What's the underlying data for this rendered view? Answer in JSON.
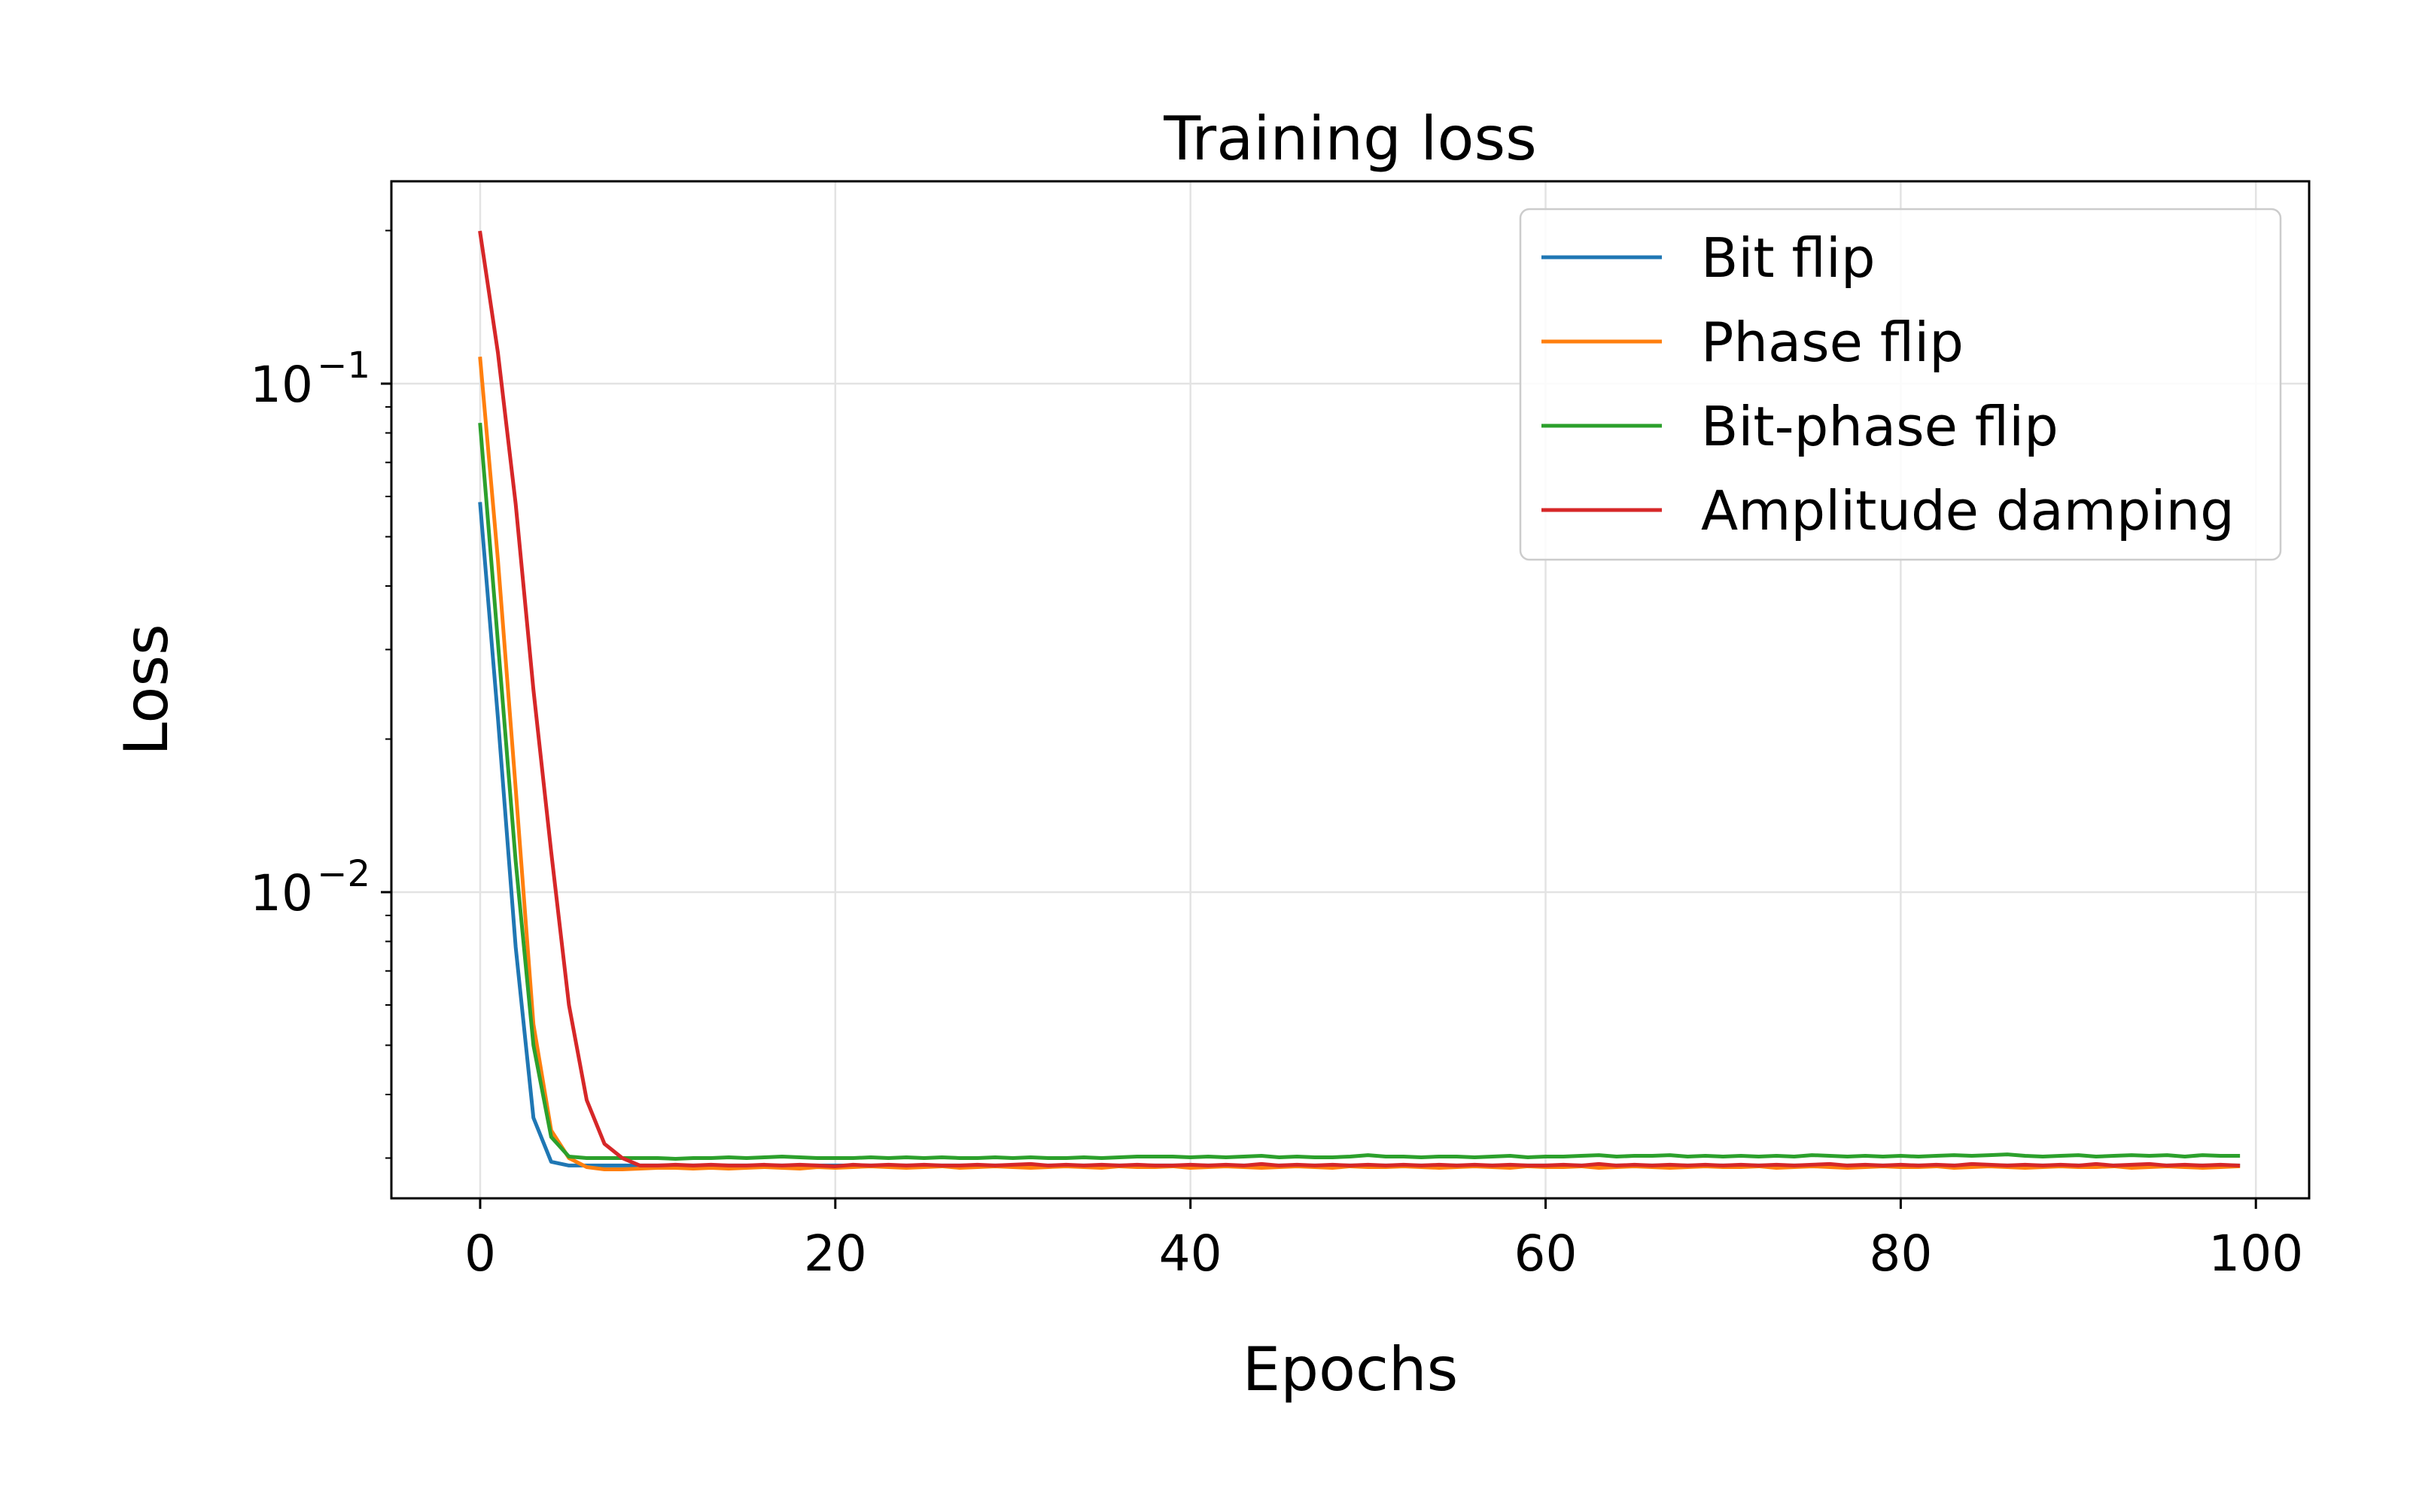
{
  "chart_data": {
    "type": "line",
    "title": "Training loss",
    "xlabel": "Epochs",
    "ylabel": "Loss",
    "xlim": [
      -5,
      103
    ],
    "ylim": [
      0.0025,
      0.25
    ],
    "yscale": "log",
    "xticks": [
      0,
      20,
      40,
      60,
      80,
      100
    ],
    "xtick_labels": [
      "0",
      "20",
      "40",
      "60",
      "80",
      "100"
    ],
    "yticks": [
      {
        "value": 0.1,
        "base": "10",
        "exponent": "−1"
      },
      {
        "value": 0.01,
        "base": "10",
        "exponent": "−2"
      }
    ],
    "grid": true,
    "legend": {
      "position": "top-right"
    },
    "series": [
      {
        "name": "Bit flip",
        "color": "#1f77b4",
        "x_start": 0,
        "values": [
          0.058,
          0.022,
          0.0078,
          0.0036,
          0.00295,
          0.0029,
          0.0029,
          0.0029,
          0.0029,
          0.0029,
          0.0029,
          0.0029,
          0.0029,
          0.0029,
          0.0029,
          0.0029,
          0.0029,
          0.0029,
          0.0029,
          0.0029,
          0.0029,
          0.0029,
          0.0029,
          0.0029,
          0.0029,
          0.0029,
          0.0029,
          0.0029,
          0.0029,
          0.0029,
          0.0029,
          0.0029,
          0.0029,
          0.0029,
          0.0029,
          0.0029,
          0.0029,
          0.0029,
          0.0029,
          0.0029,
          0.0029,
          0.0029,
          0.0029,
          0.0029,
          0.0029,
          0.0029,
          0.0029,
          0.0029,
          0.0029,
          0.0029,
          0.0029,
          0.0029,
          0.0029,
          0.0029,
          0.0029,
          0.0029,
          0.0029,
          0.0029,
          0.0029,
          0.0029,
          0.0029,
          0.0029,
          0.0029,
          0.0029,
          0.0029,
          0.0029,
          0.0029,
          0.0029,
          0.0029,
          0.0029,
          0.0029,
          0.0029,
          0.0029,
          0.0029,
          0.0029,
          0.0029,
          0.0029,
          0.0029,
          0.0029,
          0.0029,
          0.0029,
          0.0029,
          0.0029,
          0.0029,
          0.0029,
          0.0029,
          0.0029,
          0.0029,
          0.0029,
          0.0029,
          0.0029,
          0.0029,
          0.0029,
          0.0029,
          0.0029,
          0.0029,
          0.0029,
          0.0029,
          0.0029,
          0.0029
        ]
      },
      {
        "name": "Phase flip",
        "color": "#ff7f0e",
        "x_start": 0,
        "values": [
          0.112,
          0.045,
          0.016,
          0.0055,
          0.0034,
          0.003,
          0.00288,
          0.00285,
          0.00285,
          0.00286,
          0.00287,
          0.00287,
          0.00286,
          0.00287,
          0.00286,
          0.00287,
          0.00288,
          0.00287,
          0.00286,
          0.00288,
          0.00287,
          0.00288,
          0.00289,
          0.00288,
          0.00287,
          0.00288,
          0.00289,
          0.00287,
          0.00288,
          0.00289,
          0.00288,
          0.00287,
          0.00288,
          0.00289,
          0.00288,
          0.00287,
          0.00289,
          0.00288,
          0.00288,
          0.00289,
          0.00287,
          0.00288,
          0.00289,
          0.00288,
          0.00287,
          0.00288,
          0.00289,
          0.00288,
          0.00287,
          0.00289,
          0.00288,
          0.00288,
          0.00289,
          0.00288,
          0.00287,
          0.00288,
          0.00289,
          0.00288,
          0.00287,
          0.00289,
          0.00288,
          0.00288,
          0.00289,
          0.00287,
          0.00288,
          0.00289,
          0.00288,
          0.00287,
          0.00288,
          0.00289,
          0.00288,
          0.00288,
          0.00289,
          0.00287,
          0.00288,
          0.00289,
          0.00288,
          0.00287,
          0.00288,
          0.00289,
          0.00288,
          0.00288,
          0.00289,
          0.00287,
          0.00288,
          0.00289,
          0.00288,
          0.00287,
          0.00288,
          0.00289,
          0.00288,
          0.00288,
          0.00289,
          0.00287,
          0.00288,
          0.00289,
          0.00288,
          0.00287,
          0.00288,
          0.00289
        ]
      },
      {
        "name": "Bit-phase flip",
        "color": "#2ca02c",
        "x_start": 0,
        "values": [
          0.083,
          0.031,
          0.0115,
          0.005,
          0.0033,
          0.00302,
          0.003,
          0.003,
          0.003,
          0.003,
          0.003,
          0.00299,
          0.003,
          0.003,
          0.00301,
          0.003,
          0.00301,
          0.00302,
          0.00301,
          0.003,
          0.003,
          0.003,
          0.00301,
          0.003,
          0.00301,
          0.003,
          0.00301,
          0.003,
          0.003,
          0.00301,
          0.003,
          0.00301,
          0.003,
          0.003,
          0.00301,
          0.003,
          0.00301,
          0.00302,
          0.00302,
          0.00302,
          0.00301,
          0.00302,
          0.00301,
          0.00302,
          0.00303,
          0.00301,
          0.00302,
          0.00301,
          0.00301,
          0.00302,
          0.00304,
          0.00302,
          0.00302,
          0.00301,
          0.00302,
          0.00302,
          0.00301,
          0.00302,
          0.00303,
          0.00301,
          0.00302,
          0.00302,
          0.00303,
          0.00304,
          0.00302,
          0.00303,
          0.00303,
          0.00304,
          0.00302,
          0.00303,
          0.00302,
          0.00303,
          0.00302,
          0.00303,
          0.00302,
          0.00304,
          0.00303,
          0.00302,
          0.00303,
          0.00302,
          0.00303,
          0.00302,
          0.00303,
          0.00304,
          0.00303,
          0.00304,
          0.00305,
          0.00303,
          0.00302,
          0.00303,
          0.00304,
          0.00302,
          0.00303,
          0.00304,
          0.00303,
          0.00304,
          0.00302,
          0.00304,
          0.00303,
          0.00303
        ]
      },
      {
        "name": "Amplitude damping",
        "color": "#d62728",
        "x_start": 0,
        "values": [
          0.198,
          0.115,
          0.058,
          0.025,
          0.012,
          0.006,
          0.0039,
          0.0032,
          0.003,
          0.0029,
          0.0029,
          0.00291,
          0.0029,
          0.00291,
          0.0029,
          0.0029,
          0.00291,
          0.0029,
          0.00291,
          0.0029,
          0.00289,
          0.00291,
          0.0029,
          0.00291,
          0.0029,
          0.00291,
          0.0029,
          0.0029,
          0.00291,
          0.0029,
          0.00291,
          0.00292,
          0.0029,
          0.00291,
          0.0029,
          0.00291,
          0.0029,
          0.00291,
          0.0029,
          0.0029,
          0.00291,
          0.0029,
          0.00291,
          0.0029,
          0.00292,
          0.0029,
          0.00291,
          0.0029,
          0.00291,
          0.0029,
          0.00291,
          0.0029,
          0.00291,
          0.0029,
          0.00291,
          0.0029,
          0.00291,
          0.0029,
          0.00291,
          0.0029,
          0.0029,
          0.00291,
          0.0029,
          0.00292,
          0.0029,
          0.00291,
          0.0029,
          0.00291,
          0.0029,
          0.00291,
          0.0029,
          0.00291,
          0.0029,
          0.00291,
          0.0029,
          0.00291,
          0.00292,
          0.0029,
          0.00291,
          0.0029,
          0.00291,
          0.0029,
          0.00291,
          0.0029,
          0.00292,
          0.00291,
          0.0029,
          0.00291,
          0.0029,
          0.00291,
          0.0029,
          0.00292,
          0.0029,
          0.00291,
          0.00292,
          0.0029,
          0.00291,
          0.0029,
          0.00291,
          0.0029
        ]
      }
    ]
  }
}
